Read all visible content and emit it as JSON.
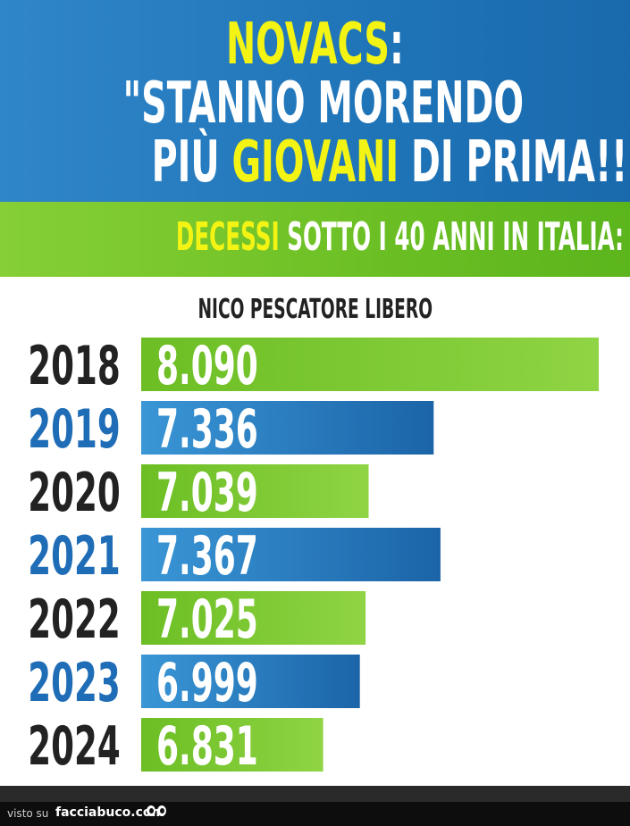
{
  "header": {
    "line1": {
      "yellow": "NOVACS",
      "white": ":"
    },
    "line2": "\"STANNO MORENDO",
    "line3": {
      "a": "PIÙ ",
      "yellow": "GIOVANI",
      "b": " DI PRIMA!!\""
    }
  },
  "band": {
    "yellow": "DECESSI",
    "white": " SOTTO I 40 ANNI IN ITALIA:"
  },
  "chart_subtitle": "NICO PESCATORE LIBERO",
  "colors": {
    "blue": "#2a85c9",
    "green": "#7fcb35",
    "yellow": "#f4f414",
    "year_dark": "#222222",
    "year_blue": "#1f6db6"
  },
  "chart_data": {
    "type": "bar",
    "orientation": "horizontal",
    "categories": [
      "2018",
      "2019",
      "2020",
      "2021",
      "2022",
      "2023",
      "2024"
    ],
    "values": [
      8090,
      7336,
      7039,
      7367,
      7025,
      6999,
      6831
    ],
    "value_labels": [
      "8.090",
      "7.336",
      "7.039",
      "7.367",
      "7.025",
      "6.999",
      "6.831"
    ],
    "title": "DECESSI SOTTO I 40 ANNI IN ITALIA:",
    "subtitle": "NICO PESCATORE LIBERO",
    "xlabel": "",
    "ylabel": "",
    "grid": false,
    "legend": "none"
  },
  "footer": {
    "visto": "visto su",
    "brand": "facciabuco.com",
    "logo_icon": "eyes-icon"
  }
}
